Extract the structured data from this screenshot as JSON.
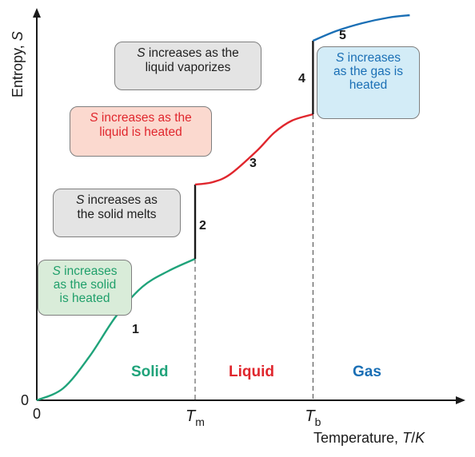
{
  "chart_data": {
    "type": "line",
    "xlabel": "Temperature, T/K",
    "ylabel": "Entropy, S",
    "origin_x_label": "0",
    "origin_y_label": "0",
    "ticks": [
      {
        "main": "T",
        "sub": "m"
      },
      {
        "main": "T",
        "sub": "b"
      }
    ],
    "regions": [
      {
        "label": "Solid",
        "color": "#1fa37a"
      },
      {
        "label": "Liquid",
        "color": "#e0262d"
      },
      {
        "label": "Gas",
        "color": "#1a6fb5"
      }
    ],
    "segment_numbers": [
      "1",
      "2",
      "3",
      "4",
      "5"
    ],
    "series": [
      {
        "phase": "solid",
        "color": "#1fa37a",
        "points": [
          [
            0,
            0
          ],
          [
            0.15,
            0.15
          ],
          [
            0.3,
            0.55
          ],
          [
            0.45,
            1.05
          ],
          [
            0.6,
            1.42
          ],
          [
            0.75,
            1.62
          ],
          [
            0.9,
            1.77
          ]
        ]
      },
      {
        "phase": "melting",
        "color": "#1a1a1a",
        "points": [
          [
            0.9,
            1.77
          ],
          [
            0.9,
            2.7
          ]
        ]
      },
      {
        "phase": "liquid",
        "color": "#e0262d",
        "points": [
          [
            0.9,
            2.7
          ],
          [
            1.0,
            2.73
          ],
          [
            1.1,
            2.83
          ],
          [
            1.25,
            3.12
          ],
          [
            1.35,
            3.35
          ],
          [
            1.45,
            3.5
          ],
          [
            1.57,
            3.58
          ]
        ]
      },
      {
        "phase": "vaporization",
        "color": "#1a1a1a",
        "points": [
          [
            1.57,
            3.58
          ],
          [
            1.57,
            4.5
          ]
        ]
      },
      {
        "phase": "gas",
        "color": "#1a6fb5",
        "points": [
          [
            1.57,
            4.5
          ],
          [
            1.7,
            4.62
          ],
          [
            1.85,
            4.72
          ],
          [
            2.0,
            4.79
          ],
          [
            2.12,
            4.82
          ]
        ]
      }
    ],
    "tm": 0.9,
    "tb": 1.57,
    "xlim": [
      0,
      2.5
    ],
    "ylim": [
      0,
      5.0
    ]
  },
  "callouts": {
    "vaporizes": {
      "sym": "S",
      "line1": " increases as the",
      "line2": "liquid vaporizes"
    },
    "liquid": {
      "sym": "S",
      "line1": " increases as the",
      "line2": "liquid is heated"
    },
    "melts": {
      "sym": "S",
      "line1": " increases as",
      "line2": "the solid melts"
    },
    "solid": {
      "sym": "S",
      "line1": " increases",
      "line2": "as the solid",
      "line3": "is heated"
    },
    "gas": {
      "sym": "S",
      "line1": " increases",
      "line2": "as the gas is",
      "line3": "heated"
    }
  }
}
